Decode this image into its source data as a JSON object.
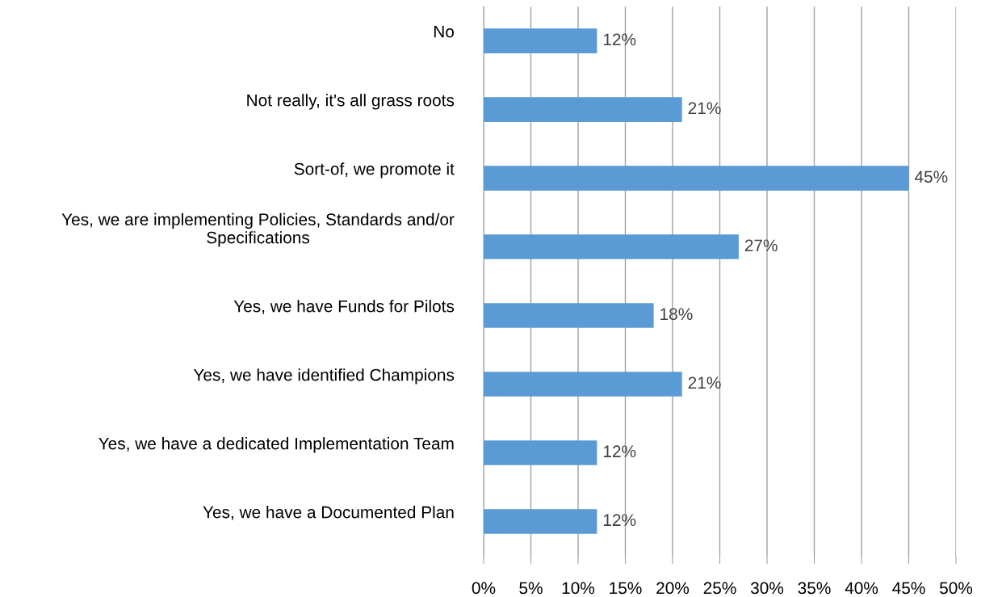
{
  "chart_data": {
    "type": "bar",
    "orientation": "horizontal",
    "categories": [
      "No",
      "Not really, it's all grass roots",
      "Sort-of, we promote it",
      "Yes, we are implementing Policies, Standards and/or Specifications",
      "Yes, we have Funds for Pilots",
      "Yes, we have identified Champions",
      "Yes, we have a dedicated Implementation Team",
      "Yes, we have a Documented Plan"
    ],
    "values": [
      12,
      21,
      45,
      27,
      18,
      21,
      12,
      12
    ],
    "value_labels": [
      "12%",
      "21%",
      "45%",
      "27%",
      "18%",
      "21%",
      "12%",
      "12%"
    ],
    "color": "#5b9bd5",
    "xlim": [
      0,
      50
    ],
    "xticks": [
      {
        "value": 0,
        "label": "0%"
      },
      {
        "value": 5,
        "label": "5%"
      },
      {
        "value": 10,
        "label": "10%"
      },
      {
        "value": 15,
        "label": "15%"
      },
      {
        "value": 20,
        "label": "20%"
      },
      {
        "value": 25,
        "label": "25%"
      },
      {
        "value": 30,
        "label": "30%"
      },
      {
        "value": 35,
        "label": "35%"
      },
      {
        "value": 40,
        "label": "40%"
      },
      {
        "value": 45,
        "label": "45%"
      },
      {
        "value": 50,
        "label": "50%"
      }
    ],
    "grid": "x"
  }
}
